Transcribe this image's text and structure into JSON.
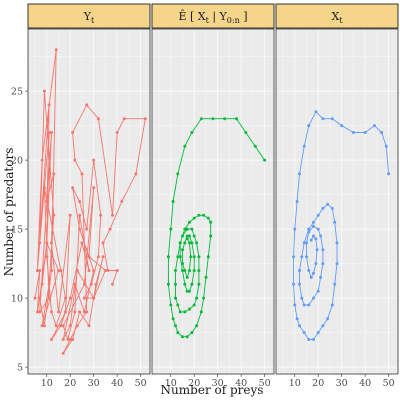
{
  "chart_data": {
    "type": "line",
    "xlabel": "Number of preys",
    "ylabel": "Number of predators",
    "xlim": [
      2,
      54
    ],
    "ylim": [
      4.5,
      29.5
    ],
    "x_ticks": [
      10,
      20,
      30,
      40,
      50
    ],
    "y_ticks": [
      5,
      10,
      15,
      20,
      25
    ],
    "grid": true,
    "panels": [
      {
        "strip": "Y",
        "strip_sub": "t",
        "color": "#f8766d",
        "points": [
          [
            5,
            10
          ],
          [
            7,
            12
          ],
          [
            6,
            9
          ],
          [
            8,
            11
          ],
          [
            10,
            14
          ],
          [
            7,
            10
          ],
          [
            9,
            8
          ],
          [
            12,
            12
          ],
          [
            14,
            28
          ],
          [
            8,
            20
          ],
          [
            6,
            12
          ],
          [
            9,
            18
          ],
          [
            11,
            10
          ],
          [
            7,
            9
          ],
          [
            12,
            22
          ],
          [
            10,
            14
          ],
          [
            15,
            12
          ],
          [
            8,
            8
          ],
          [
            11,
            11
          ],
          [
            13,
            16
          ],
          [
            9,
            25
          ],
          [
            7,
            14
          ],
          [
            11,
            24
          ],
          [
            10,
            13
          ],
          [
            12,
            9
          ],
          [
            14,
            8
          ],
          [
            18,
            10
          ],
          [
            16,
            12
          ],
          [
            9,
            18
          ],
          [
            11,
            22
          ],
          [
            10,
            17
          ],
          [
            13,
            19
          ],
          [
            12,
            14
          ],
          [
            15,
            9
          ],
          [
            20,
            16
          ],
          [
            18,
            9
          ],
          [
            12,
            7
          ],
          [
            16,
            8
          ],
          [
            20,
            10
          ],
          [
            25,
            14
          ],
          [
            28,
            12
          ],
          [
            24,
            16
          ],
          [
            22,
            9
          ],
          [
            19,
            7
          ],
          [
            17,
            8
          ],
          [
            26,
            11
          ],
          [
            30,
            18
          ],
          [
            28,
            13
          ],
          [
            35,
            12
          ],
          [
            30,
            10
          ],
          [
            23,
            12
          ],
          [
            20,
            8
          ],
          [
            17,
            7
          ],
          [
            22,
            11
          ],
          [
            26,
            9
          ],
          [
            30,
            12
          ],
          [
            24,
            15
          ],
          [
            21,
            18
          ],
          [
            24,
            17
          ],
          [
            27,
            15
          ],
          [
            30,
            20
          ],
          [
            33,
            16
          ],
          [
            32,
            13
          ],
          [
            29,
            11
          ],
          [
            26,
            10
          ],
          [
            30,
            10
          ],
          [
            34,
            13
          ],
          [
            31,
            11
          ],
          [
            28,
            8
          ],
          [
            24,
            9
          ],
          [
            21,
            7
          ],
          [
            17,
            6
          ],
          [
            20,
            7
          ],
          [
            23,
            8
          ],
          [
            27,
            9
          ],
          [
            25,
            19
          ],
          [
            22,
            20
          ],
          [
            21,
            22
          ],
          [
            27,
            24
          ],
          [
            32,
            23
          ],
          [
            38,
            16
          ],
          [
            40,
            22
          ],
          [
            43,
            23
          ],
          [
            52,
            23
          ],
          [
            48,
            19
          ],
          [
            42,
            17
          ],
          [
            37,
            15
          ],
          [
            34,
            14
          ],
          [
            36,
            12
          ],
          [
            40,
            12
          ],
          [
            38,
            11
          ]
        ]
      },
      {
        "strip": "Ê [ X",
        "strip_sub": "t",
        "strip_rest": " | Y",
        "strip_sub2": "0:n",
        "strip_end": " ]",
        "color": "#00ba38",
        "points": [
          [
            50,
            20
          ],
          [
            46,
            21
          ],
          [
            42,
            22
          ],
          [
            38,
            23
          ],
          [
            33,
            23
          ],
          [
            28,
            23
          ],
          [
            23,
            23
          ],
          [
            19,
            22
          ],
          [
            16,
            21
          ],
          [
            13,
            19
          ],
          [
            11,
            17
          ],
          [
            10,
            15
          ],
          [
            9,
            13
          ],
          [
            9,
            11
          ],
          [
            10,
            9.5
          ],
          [
            11,
            8.5
          ],
          [
            12,
            8
          ],
          [
            13,
            7.5
          ],
          [
            15,
            7.2
          ],
          [
            17,
            7.2
          ],
          [
            19,
            7.5
          ],
          [
            21,
            8
          ],
          [
            23,
            9
          ],
          [
            24,
            10
          ],
          [
            25,
            11.5
          ],
          [
            26,
            13
          ],
          [
            27,
            14.5
          ],
          [
            27,
            15.5
          ],
          [
            26,
            15.8
          ],
          [
            24,
            16
          ],
          [
            22,
            16
          ],
          [
            20,
            15.8
          ],
          [
            18,
            15.5
          ],
          [
            16,
            15
          ],
          [
            14,
            14
          ],
          [
            13,
            13
          ],
          [
            12,
            12
          ],
          [
            12,
            11
          ],
          [
            12,
            10
          ],
          [
            13,
            9.5
          ],
          [
            14,
            9
          ],
          [
            16,
            9
          ],
          [
            18,
            9.2
          ],
          [
            20,
            9.5
          ],
          [
            21,
            10
          ],
          [
            22,
            11
          ],
          [
            22,
            12
          ],
          [
            22,
            13
          ],
          [
            21,
            14
          ],
          [
            20,
            14.5
          ],
          [
            19,
            15
          ],
          [
            17,
            15
          ],
          [
            15,
            14.5
          ],
          [
            14,
            14
          ],
          [
            14,
            13
          ],
          [
            15,
            12
          ],
          [
            16,
            11
          ],
          [
            17,
            10.5
          ],
          [
            18,
            10.5
          ],
          [
            19,
            11
          ],
          [
            20,
            12
          ],
          [
            20,
            13
          ],
          [
            19,
            14
          ],
          [
            18,
            14.5
          ],
          [
            17,
            14.5
          ],
          [
            16,
            14
          ],
          [
            15,
            13.5
          ],
          [
            15,
            12.5
          ],
          [
            16,
            12
          ],
          [
            17,
            11.5
          ],
          [
            18,
            12
          ],
          [
            18.5,
            13
          ],
          [
            18,
            14
          ],
          [
            17,
            14.3
          ]
        ]
      },
      {
        "strip": "X",
        "strip_sub": "t",
        "color": "#619cff",
        "points": [
          [
            50,
            19
          ],
          [
            49,
            21
          ],
          [
            47,
            22
          ],
          [
            44,
            22.5
          ],
          [
            40,
            22
          ],
          [
            35,
            22
          ],
          [
            30,
            22.5
          ],
          [
            26,
            23
          ],
          [
            22,
            23
          ],
          [
            19,
            23.5
          ],
          [
            16,
            22.5
          ],
          [
            14,
            21
          ],
          [
            12,
            19
          ],
          [
            11,
            17
          ],
          [
            10,
            15
          ],
          [
            9.5,
            13
          ],
          [
            9.5,
            11
          ],
          [
            10,
            9.5
          ],
          [
            11,
            8.5
          ],
          [
            12,
            8
          ],
          [
            14,
            7.5
          ],
          [
            16,
            7
          ],
          [
            18,
            7
          ],
          [
            20,
            7.5
          ],
          [
            22,
            8
          ],
          [
            24,
            8.5
          ],
          [
            26,
            9.5
          ],
          [
            27,
            11
          ],
          [
            28,
            12.5
          ],
          [
            28,
            14
          ],
          [
            27,
            15.5
          ],
          [
            26,
            16.5
          ],
          [
            24,
            16.8
          ],
          [
            22,
            16.5
          ],
          [
            20,
            16
          ],
          [
            18,
            15.5
          ],
          [
            16,
            15
          ],
          [
            14,
            14
          ],
          [
            13,
            13
          ],
          [
            12,
            12
          ],
          [
            12,
            11
          ],
          [
            13,
            10
          ],
          [
            14,
            9.5
          ],
          [
            16,
            9.5
          ],
          [
            18,
            10
          ],
          [
            20,
            10.5
          ],
          [
            21,
            11.5
          ],
          [
            22,
            12.5
          ],
          [
            22,
            13.5
          ],
          [
            21,
            14.5
          ],
          [
            20,
            15
          ],
          [
            18,
            15.2
          ],
          [
            16,
            14.8
          ],
          [
            15,
            14
          ],
          [
            15,
            13
          ],
          [
            16,
            12
          ],
          [
            17,
            11.5
          ],
          [
            18,
            11.8
          ],
          [
            19,
            12.5
          ],
          [
            19.5,
            13.5
          ],
          [
            19,
            14.3
          ],
          [
            18,
            14.5
          ],
          [
            17,
            14.2
          ]
        ]
      }
    ]
  }
}
